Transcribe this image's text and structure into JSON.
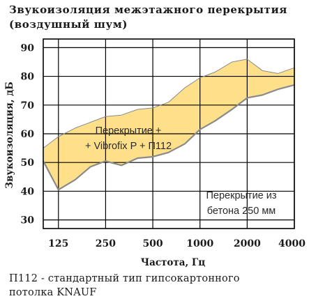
{
  "title": {
    "line1": "Звукоизоляция межэтажного перекрытия",
    "line2": "(воздушный шум)"
  },
  "footnote": {
    "line1": "П112 - стандартный тип гипсокартонного",
    "line2": "потолка KNAUF"
  },
  "colors": {
    "band_fill": "#FFE08A",
    "band_stroke": "#8A8A8A",
    "grid": "#000000"
  },
  "chart_data": {
    "type": "area",
    "xlabel": "Частота, Гц",
    "ylabel": "Звукоизоляция, дБ",
    "x_scale": "log",
    "xlim": [
      100,
      4000
    ],
    "ylim": [
      27,
      93
    ],
    "grid": true,
    "xticks": [
      125,
      250,
      500,
      1000,
      2000,
      4000
    ],
    "xtick_labels": [
      "125",
      "250",
      "500",
      "1000",
      "2000",
      "4000"
    ],
    "yticks": [
      30,
      40,
      50,
      60,
      70,
      80,
      90
    ],
    "ytick_labels": [
      "30",
      "40",
      "50",
      "60",
      "70",
      "80",
      "90"
    ],
    "series": [
      {
        "name": "Перекрытие из бетона 250 мм",
        "x": [
          100,
          125,
          160,
          200,
          250,
          315,
          400,
          500,
          630,
          800,
          1000,
          1250,
          1600,
          2000,
          2500,
          3150,
          4000
        ],
        "values": [
          50.5,
          40.5,
          44,
          48.5,
          50.5,
          49,
          51.5,
          52,
          53.5,
          56.5,
          61.5,
          64.5,
          68.5,
          72.5,
          73.5,
          75.5,
          77
        ]
      },
      {
        "name": "Перекрытие + Vibrofix P + П112",
        "x": [
          100,
          125,
          160,
          200,
          250,
          315,
          400,
          500,
          630,
          800,
          1000,
          1250,
          1600,
          2000,
          2500,
          3150,
          4000
        ],
        "values": [
          55,
          59,
          62,
          64,
          66,
          66.5,
          68.5,
          69,
          71,
          76,
          79.5,
          81.5,
          85,
          86,
          82,
          81,
          83
        ]
      }
    ],
    "annotations": [
      {
        "lines": [
          "Перекрытие +",
          "+ Vibrofix P + П112"
        ]
      },
      {
        "lines": [
          "Перекрытие из",
          "бетона 250 мм"
        ]
      }
    ]
  }
}
